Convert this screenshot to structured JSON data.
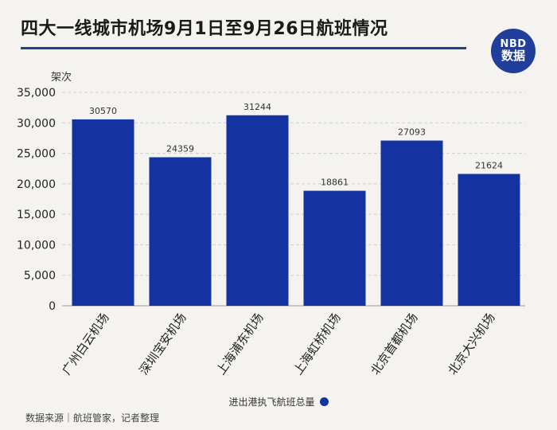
{
  "title": "四大一线城市机场9月1日至9月26日航班情况",
  "logo": {
    "line1": "NBD",
    "line2": "数据"
  },
  "source": "数据来源｜航班管家，记者整理",
  "colors": {
    "bar": "#1432a0",
    "title_rule": "#1f3f8f",
    "background": "#f5f3ef"
  },
  "chart_data": {
    "type": "bar",
    "categories": [
      "广州白云机场",
      "深圳宝安机场",
      "上海浦东机场",
      "上海虹桥机场",
      "北京首都机场",
      "北京大兴机场"
    ],
    "series": [
      {
        "name": "进出港执飞航班总量",
        "values": [
          30570,
          24359,
          31244,
          18861,
          27093,
          21624
        ]
      }
    ],
    "data_labels": [
      "30570",
      "24359",
      "31244",
      "18861",
      "27093",
      "21624"
    ],
    "ylabel": "架次",
    "ylim": [
      0,
      35000
    ],
    "yticks": [
      0,
      5000,
      10000,
      15000,
      20000,
      25000,
      30000,
      35000
    ],
    "ytick_labels": [
      "0",
      "5,000",
      "10,000",
      "15,000",
      "20,000",
      "25,000",
      "30,000",
      "35,000"
    ],
    "grid": true,
    "legend_position": "bottom-center"
  }
}
